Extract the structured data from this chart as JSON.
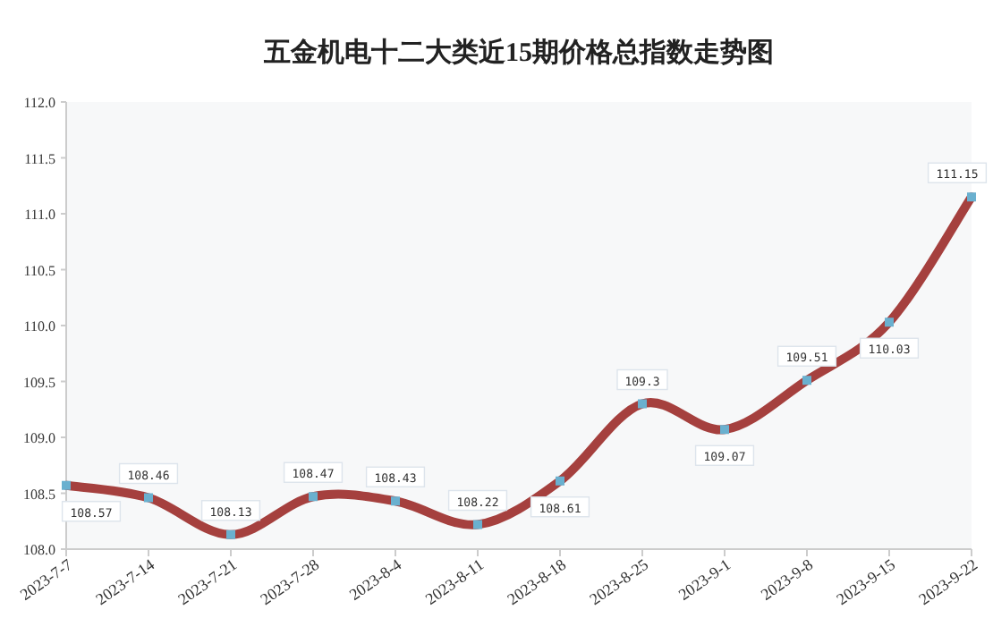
{
  "chart_data": {
    "type": "line",
    "title": "五金机电十二大类近15期价格总指数走势图",
    "categories": [
      "2023-7-7",
      "2023-7-14",
      "2023-7-21",
      "2023-7-28",
      "2023-8-4",
      "2023-8-11",
      "2023-8-18",
      "2023-8-25",
      "2023-9-1",
      "2023-9-8",
      "2023-9-15",
      "2023-9-22"
    ],
    "series": [
      {
        "color": "#a5403e",
        "values": [
          108.57,
          108.46,
          108.13,
          108.47,
          108.43,
          108.22,
          108.61,
          109.3,
          109.07,
          109.51,
          110.03,
          111.15
        ]
      }
    ],
    "ylim": [
      108,
      112
    ],
    "yticks": [
      {
        "value": 108,
        "label": "108.0"
      },
      {
        "value": 108.5,
        "label": "108.5"
      },
      {
        "value": 109,
        "label": "109.0"
      },
      {
        "value": 109.5,
        "label": "109.5"
      },
      {
        "value": 110,
        "label": "110.0"
      },
      {
        "value": 110.5,
        "label": "110.5"
      },
      {
        "value": 111,
        "label": "111.0"
      },
      {
        "value": 111.5,
        "label": "111.5"
      },
      {
        "value": 112,
        "label": "112.0"
      }
    ],
    "marker": "square",
    "grid": false,
    "data_labels": true
  }
}
